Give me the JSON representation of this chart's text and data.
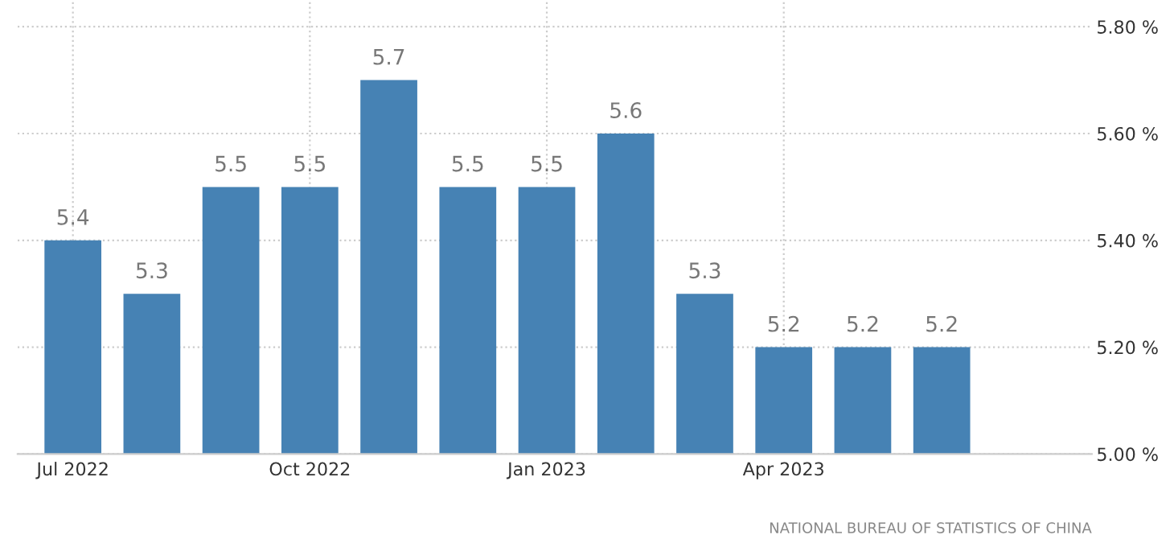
{
  "chart_data": {
    "type": "bar",
    "categories": [
      "Jul 2022",
      null,
      null,
      "Oct 2022",
      null,
      null,
      "Jan 2023",
      null,
      null,
      "Apr 2023",
      null,
      null
    ],
    "values": [
      5.4,
      5.3,
      5.5,
      5.5,
      5.7,
      5.5,
      5.5,
      5.6,
      5.3,
      5.2,
      5.2,
      5.2
    ],
    "color": "#4682b4",
    "data_labels": true,
    "ylim": [
      5.0,
      5.85
    ],
    "yticks": [
      {
        "value": 5.0,
        "label": "5.00 %"
      },
      {
        "value": 5.2,
        "label": "5.20 %"
      },
      {
        "value": 5.4,
        "label": "5.40 %"
      },
      {
        "value": 5.6,
        "label": "5.60 %"
      },
      {
        "value": 5.8,
        "label": "5.80 %"
      }
    ],
    "grid": true,
    "annotations": [
      "NATIONAL BUREAU OF STATISTICS OF CHINA"
    ]
  }
}
